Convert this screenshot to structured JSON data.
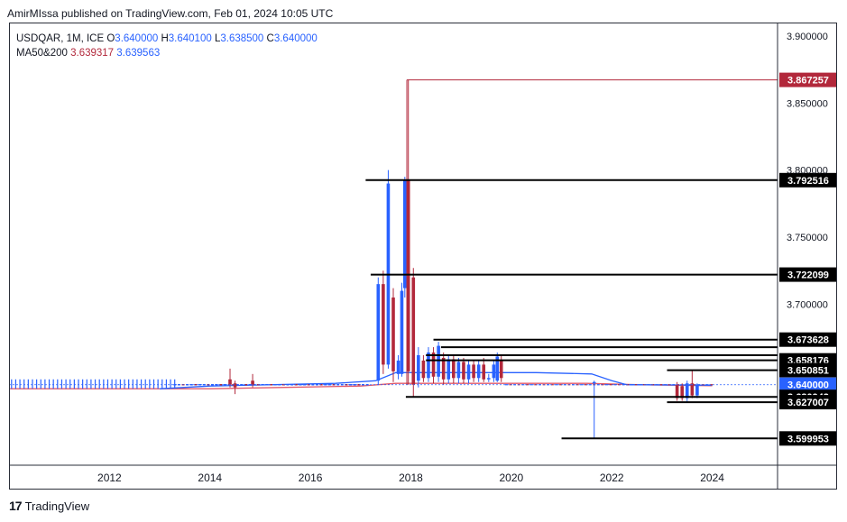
{
  "header": {
    "published": "AmirMIssa published on TradingView.com, Feb 01, 2024 10:05 UTC"
  },
  "legend": {
    "symbol": "USDQAR, 1M, ICE",
    "o_label": "O",
    "o_value": "3.640000",
    "h_label": "H",
    "h_value": "3.640100",
    "l_label": "L",
    "l_value": "3.638500",
    "c_label": "C",
    "c_value": "3.640000",
    "ma_label": "MA50&200",
    "ma50_value": "3.639317",
    "ma200_value": "3.639563"
  },
  "footer": {
    "brand": "TradingView"
  },
  "colors": {
    "up": "#2962ff",
    "down": "#b2283b",
    "ma50": "#e05a6b",
    "ma200": "#2962ff",
    "level": "#000000",
    "axis_text": "#131722"
  },
  "chart_data": {
    "type": "candlestick",
    "symbol": "USDQAR",
    "timeframe": "1M",
    "xlim": [
      2010.0,
      2025.3
    ],
    "ylim": [
      3.58,
      3.91
    ],
    "x_ticks": [
      "2012",
      "2014",
      "2016",
      "2018",
      "2020",
      "2022",
      "2024"
    ],
    "y_ticks": [
      "3.900000",
      "3.850000",
      "3.800000",
      "3.750000",
      "3.700000"
    ],
    "levels": [
      {
        "value": 3.867257,
        "label": "3.867257",
        "style": "red-marker"
      },
      {
        "value": 3.792516,
        "label": "3.792516",
        "start": 2017.1
      },
      {
        "value": 3.722099,
        "label": "3.722099",
        "start": 2017.2
      },
      {
        "value": 3.673628,
        "label": "3.673628",
        "start": 2018.45
      },
      {
        "value": 3.668,
        "label": "",
        "start": 2018.6
      },
      {
        "value": 3.662,
        "label": "",
        "start": 2018.3
      },
      {
        "value": 3.658176,
        "label": "3.658176",
        "start": 2018.3
      },
      {
        "value": 3.650851,
        "label": "3.650851",
        "start": 2023.1
      },
      {
        "value": 3.64,
        "label": "3.640000",
        "style": "last-price"
      },
      {
        "value": 3.630942,
        "label": "3.630942",
        "start": 2017.9
      },
      {
        "value": 3.627,
        "label": "3.627007",
        "start": 2023.1
      },
      {
        "value": 3.599953,
        "label": "3.599953",
        "start": 2021.0
      }
    ],
    "candles": [
      {
        "x": 2017.35,
        "o": 3.643,
        "h": 3.72,
        "l": 3.64,
        "c": 3.715
      },
      {
        "x": 2017.45,
        "o": 3.715,
        "h": 3.725,
        "l": 3.648,
        "c": 3.655
      },
      {
        "x": 2017.55,
        "o": 3.655,
        "h": 3.8,
        "l": 3.652,
        "c": 3.79
      },
      {
        "x": 2017.65,
        "o": 3.705,
        "h": 3.712,
        "l": 3.642,
        "c": 3.65
      },
      {
        "x": 2017.75,
        "o": 3.648,
        "h": 3.662,
        "l": 3.644,
        "c": 3.658
      },
      {
        "x": 2017.82,
        "o": 3.648,
        "h": 3.716,
        "l": 3.646,
        "c": 3.71
      },
      {
        "x": 2017.88,
        "o": 3.712,
        "h": 3.795,
        "l": 3.705,
        "c": 3.793
      },
      {
        "x": 2017.95,
        "o": 3.793,
        "h": 3.867,
        "l": 3.64,
        "c": 3.65
      },
      {
        "x": 2018.05,
        "o": 3.72,
        "h": 3.727,
        "l": 3.631,
        "c": 3.64
      },
      {
        "x": 2018.15,
        "o": 3.643,
        "h": 3.668,
        "l": 3.638,
        "c": 3.662
      },
      {
        "x": 2018.25,
        "o": 3.658,
        "h": 3.662,
        "l": 3.642,
        "c": 3.645
      },
      {
        "x": 2018.35,
        "o": 3.645,
        "h": 3.668,
        "l": 3.642,
        "c": 3.664
      },
      {
        "x": 2018.45,
        "o": 3.664,
        "h": 3.668,
        "l": 3.641,
        "c": 3.646
      },
      {
        "x": 2018.55,
        "o": 3.646,
        "h": 3.672,
        "l": 3.642,
        "c": 3.669
      },
      {
        "x": 2018.65,
        "o": 3.66,
        "h": 3.664,
        "l": 3.64,
        "c": 3.644
      },
      {
        "x": 2018.75,
        "o": 3.644,
        "h": 3.662,
        "l": 3.641,
        "c": 3.659
      },
      {
        "x": 2018.85,
        "o": 3.659,
        "h": 3.662,
        "l": 3.641,
        "c": 3.645
      },
      {
        "x": 2018.95,
        "o": 3.645,
        "h": 3.66,
        "l": 3.641,
        "c": 3.657
      },
      {
        "x": 2019.05,
        "o": 3.657,
        "h": 3.66,
        "l": 3.641,
        "c": 3.644
      },
      {
        "x": 2019.15,
        "o": 3.644,
        "h": 3.658,
        "l": 3.641,
        "c": 3.655
      },
      {
        "x": 2019.25,
        "o": 3.655,
        "h": 3.658,
        "l": 3.642,
        "c": 3.645
      },
      {
        "x": 2019.35,
        "o": 3.645,
        "h": 3.658,
        "l": 3.642,
        "c": 3.655
      },
      {
        "x": 2019.45,
        "o": 3.655,
        "h": 3.66,
        "l": 3.642,
        "c": 3.644
      },
      {
        "x": 2019.55,
        "o": 3.644,
        "h": 3.648,
        "l": 3.642,
        "c": 3.645
      },
      {
        "x": 2019.65,
        "o": 3.645,
        "h": 3.658,
        "l": 3.642,
        "c": 3.655
      },
      {
        "x": 2019.72,
        "o": 3.643,
        "h": 3.664,
        "l": 3.642,
        "c": 3.661
      },
      {
        "x": 2019.8,
        "o": 3.658,
        "h": 3.662,
        "l": 3.642,
        "c": 3.645
      },
      {
        "x": 2014.4,
        "o": 3.644,
        "h": 3.652,
        "l": 3.638,
        "c": 3.64
      },
      {
        "x": 2014.5,
        "o": 3.641,
        "h": 3.643,
        "l": 3.633,
        "c": 3.638
      },
      {
        "x": 2014.85,
        "o": 3.643,
        "h": 3.648,
        "l": 3.638,
        "c": 3.64
      },
      {
        "x": 2021.65,
        "o": 3.641,
        "h": 3.643,
        "l": 3.6,
        "c": 3.642
      },
      {
        "x": 2023.3,
        "o": 3.64,
        "h": 3.642,
        "l": 3.628,
        "c": 3.63
      },
      {
        "x": 2023.4,
        "o": 3.639,
        "h": 3.641,
        "l": 3.628,
        "c": 3.63
      },
      {
        "x": 2023.5,
        "o": 3.63,
        "h": 3.643,
        "l": 3.627,
        "c": 3.641
      },
      {
        "x": 2023.6,
        "o": 3.641,
        "h": 3.651,
        "l": 3.63,
        "c": 3.632
      },
      {
        "x": 2023.7,
        "o": 3.632,
        "h": 3.641,
        "l": 3.63,
        "c": 3.64
      }
    ],
    "flat_candles": {
      "start": 2010.05,
      "end": 2013.3,
      "step": 0.0833,
      "o": 3.637,
      "h": 3.644,
      "l": 3.637,
      "c": 3.643
    },
    "quiet_period": {
      "start": 2013.3,
      "end": 2017.2,
      "price": 3.64
    },
    "ma50": [
      [
        2010.0,
        3.637
      ],
      [
        2014.0,
        3.637
      ],
      [
        2015.5,
        3.638
      ],
      [
        2017.0,
        3.639
      ],
      [
        2017.7,
        3.641
      ],
      [
        2018.4,
        3.641
      ],
      [
        2020.0,
        3.641
      ],
      [
        2021.5,
        3.641
      ],
      [
        2022.5,
        3.64
      ],
      [
        2024.0,
        3.6393
      ]
    ],
    "ma200": [
      [
        2013.0,
        3.637
      ],
      [
        2014.0,
        3.639
      ],
      [
        2016.5,
        3.641
      ],
      [
        2017.3,
        3.643
      ],
      [
        2017.7,
        3.649
      ],
      [
        2018.4,
        3.649
      ],
      [
        2019.0,
        3.649
      ],
      [
        2020.5,
        3.649
      ],
      [
        2021.6,
        3.648
      ],
      [
        2022.0,
        3.643
      ],
      [
        2022.3,
        3.64
      ],
      [
        2024.0,
        3.6396
      ]
    ]
  }
}
